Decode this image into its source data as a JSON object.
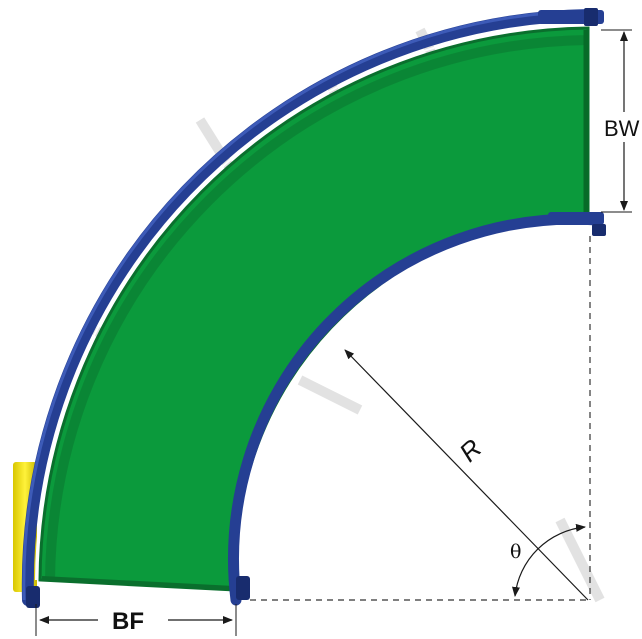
{
  "labels": {
    "belt_width": "BW",
    "belt_face": "BF",
    "radius": "R",
    "angle": "θ"
  },
  "colors": {
    "belt": "#0b9a3c",
    "belt_edge": "#0a6f2d",
    "frame": "#253f93",
    "frame_dark": "#182c6e",
    "drive": "#f0e31a",
    "dimension": "#1a1a1a"
  }
}
